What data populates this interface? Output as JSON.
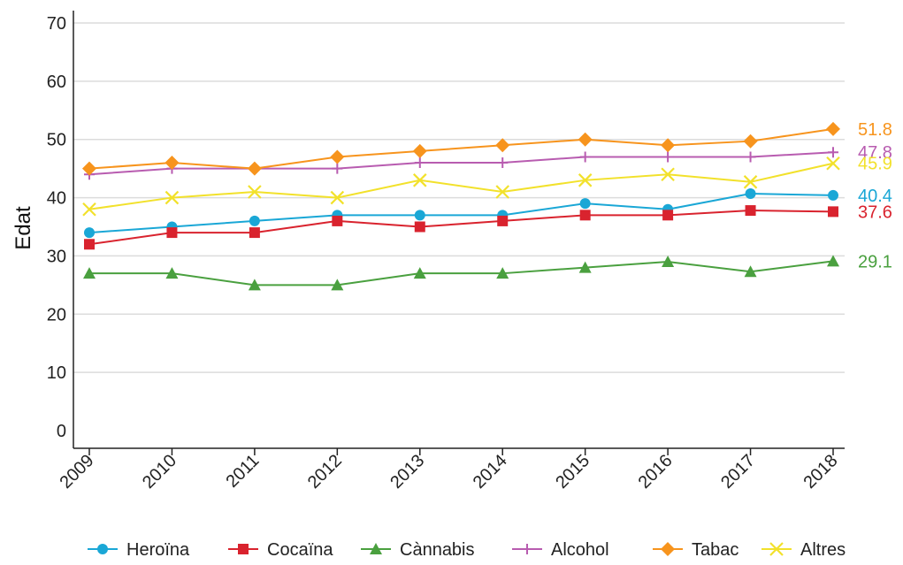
{
  "chart_data": {
    "type": "line",
    "title": "",
    "xlabel": "",
    "ylabel": "Edat",
    "ylim": [
      0,
      70
    ],
    "yticks": [
      0,
      10,
      20,
      30,
      40,
      50,
      60,
      70
    ],
    "grid": "horizontal",
    "legend_position": "bottom",
    "categories": [
      "2009",
      "2010",
      "2011",
      "2012",
      "2013",
      "2014",
      "2015",
      "2016",
      "2017",
      "2018"
    ],
    "series": [
      {
        "name": "Heroïna",
        "marker": "circle",
        "color": "#1aa7d6",
        "values": [
          34,
          35,
          36,
          37,
          37,
          37,
          39,
          38,
          40.7,
          40.4
        ],
        "end_label": "40.4"
      },
      {
        "name": "Cocaïna",
        "marker": "square",
        "color": "#d9232e",
        "values": [
          32,
          34,
          34,
          36,
          35,
          36,
          37,
          37,
          37.8,
          37.6
        ],
        "end_label": "37.6"
      },
      {
        "name": "Cànnabis",
        "marker": "triangle",
        "color": "#4aa03f",
        "values": [
          27,
          27,
          25,
          25,
          27,
          27,
          28,
          29,
          27.3,
          29.1
        ],
        "end_label": "29.1"
      },
      {
        "name": "Alcohol",
        "marker": "plus",
        "color": "#b85cb0",
        "values": [
          44,
          45,
          45,
          45,
          46,
          46,
          47,
          47,
          47,
          47.8
        ],
        "end_label": "47.8"
      },
      {
        "name": "Tabac",
        "marker": "diamond",
        "color": "#f7941d",
        "values": [
          45,
          46,
          45,
          47,
          48,
          49,
          50,
          49,
          49.7,
          51.8
        ],
        "end_label": "51.8"
      },
      {
        "name": "Altres",
        "marker": "x",
        "color": "#f2e12b",
        "values": [
          38,
          40,
          41,
          40,
          43,
          41,
          43,
          44,
          42.7,
          45.9
        ],
        "end_label": "45.9"
      }
    ]
  }
}
